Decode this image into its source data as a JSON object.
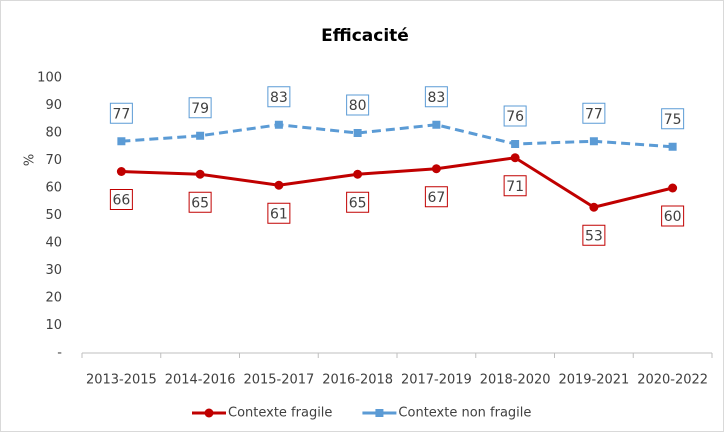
{
  "chart_data": {
    "type": "line",
    "title": "Efficacité",
    "y_label": "%",
    "categories": [
      "2013-2015",
      "2014-2016",
      "2015-2017",
      "2016-2018",
      "2017-2019",
      "2018-2020",
      "2019-2021",
      "2020-2022"
    ],
    "series": [
      {
        "name": "Contexte fragile",
        "color": "#c00000",
        "dash": false,
        "marker": "circle",
        "label_position": "below",
        "values": [
          66,
          65,
          61,
          65,
          67,
          71,
          53,
          60
        ]
      },
      {
        "name": "Contexte non fragile",
        "color": "#5b9bd5",
        "dash": true,
        "marker": "square",
        "label_position": "above",
        "values": [
          77,
          79,
          83,
          80,
          83,
          76,
          77,
          75
        ]
      }
    ],
    "ylim": [
      0,
      100
    ],
    "yticks": [
      {
        "value": 0,
        "label": "-"
      },
      10,
      20,
      30,
      40,
      50,
      60,
      70,
      80,
      90,
      100
    ],
    "grid": false,
    "legend": "bottom"
  }
}
